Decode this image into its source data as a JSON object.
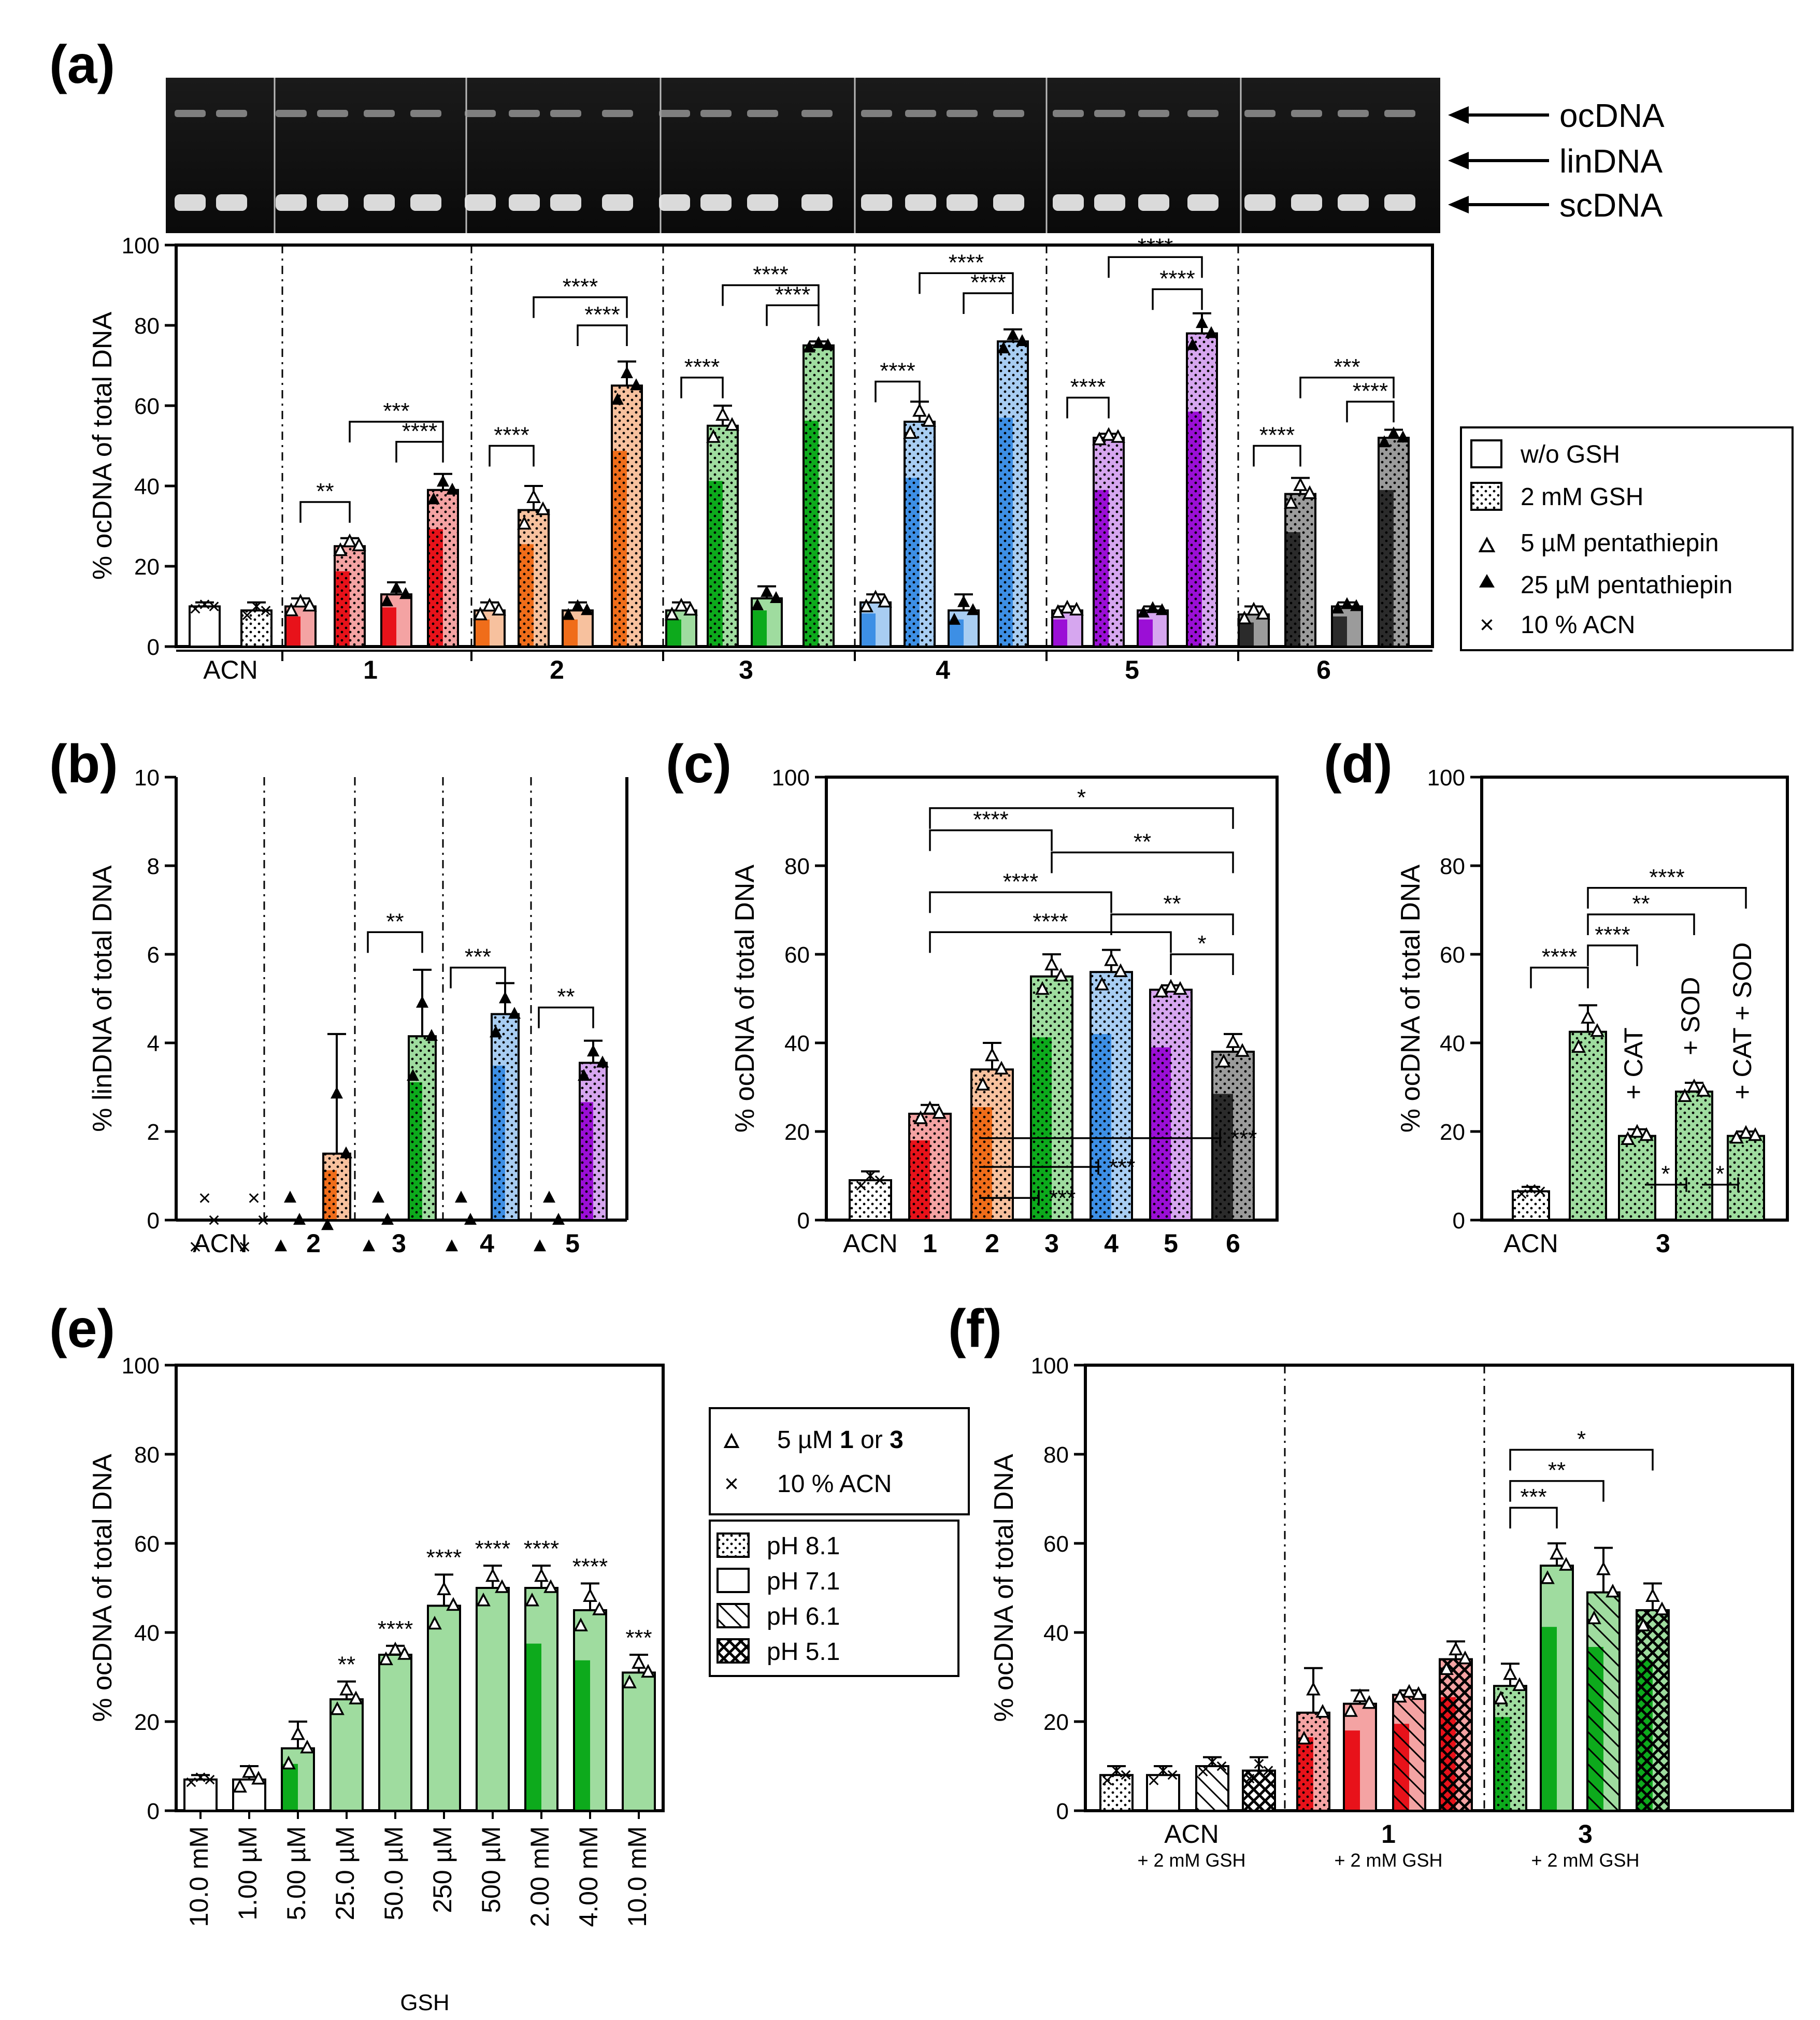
{
  "colors": {
    "1": "#e8121a",
    "1l": "#f4a3a3",
    "2": "#f06d1a",
    "2l": "#f7c19e",
    "3": "#0daa1c",
    "3l": "#9fdc9f",
    "4": "#3d8fe5",
    "4l": "#a8cdf2",
    "5": "#9b0fd6",
    "5l": "#d6a6ef",
    "6": "#2b2b2b",
    "6l": "#9b9b9b",
    "acn": "#ffffff"
  },
  "gel": {
    "labels": [
      "ocDNA",
      "linDNA",
      "scDNA"
    ]
  },
  "legend_a": [
    "w/o  GSH",
    "2 mM GSH",
    "5 µM pentathiepin",
    "25 µM pentathiepin",
    "10 % ACN"
  ],
  "legend_e": {
    "markers": [
      "5 µM 1 or 3",
      "10 % ACN"
    ],
    "markers_main": [
      "5 µM ",
      "10 % ACN"
    ],
    "markers_b1": "1",
    "markers_or": " or ",
    "markers_b3": "3",
    "patterns": [
      "pH 8.1",
      "pH 7.1",
      "pH 6.1",
      "pH 5.1"
    ]
  },
  "chart_data": [
    {
      "panel": "(a)",
      "type": "bar",
      "ylabel": "% ocDNA of total DNA",
      "ylim": [
        0,
        100
      ],
      "yticks": [
        0,
        20,
        40,
        60,
        80,
        100
      ],
      "groups": [
        "ACN",
        "1",
        "2",
        "3",
        "4",
        "5",
        "6"
      ],
      "bars": [
        {
          "group": "ACN",
          "cond": "w/o GSH, 10% ACN",
          "value": 10,
          "color": "acn",
          "pattern": "none",
          "err": 1,
          "marker": "x"
        },
        {
          "group": "ACN",
          "cond": "2 mM GSH, 10% ACN",
          "value": 9,
          "color": "acn",
          "pattern": "dots",
          "err": 2,
          "marker": "x"
        },
        {
          "group": "1",
          "cond": "w/o GSH, 5 µM",
          "value": 10,
          "color": "1",
          "pattern": "none",
          "err": 2,
          "marker": "open"
        },
        {
          "group": "1",
          "cond": "2 mM GSH, 5 µM",
          "value": 25,
          "color": "1",
          "pattern": "dots",
          "err": 2,
          "marker": "open"
        },
        {
          "group": "1",
          "cond": "w/o GSH, 25 µM",
          "value": 13,
          "color": "1",
          "pattern": "none",
          "err": 3,
          "marker": "filled"
        },
        {
          "group": "1",
          "cond": "2 mM GSH, 25 µM",
          "value": 39,
          "color": "1",
          "pattern": "dots",
          "err": 4,
          "marker": "filled"
        },
        {
          "group": "2",
          "cond": "w/o GSH, 5 µM",
          "value": 9,
          "color": "2",
          "pattern": "none",
          "err": 2,
          "marker": "open"
        },
        {
          "group": "2",
          "cond": "2 mM GSH, 5 µM",
          "value": 34,
          "color": "2",
          "pattern": "dots",
          "err": 6,
          "marker": "open"
        },
        {
          "group": "2",
          "cond": "w/o GSH, 25 µM",
          "value": 9,
          "color": "2",
          "pattern": "none",
          "err": 2,
          "marker": "filled"
        },
        {
          "group": "2",
          "cond": "2 mM GSH, 25 µM",
          "value": 65,
          "color": "2",
          "pattern": "dots",
          "err": 6,
          "marker": "filled"
        },
        {
          "group": "3",
          "cond": "w/o GSH, 5 µM",
          "value": 9,
          "color": "3",
          "pattern": "none",
          "err": 2,
          "marker": "open"
        },
        {
          "group": "3",
          "cond": "2 mM GSH, 5 µM",
          "value": 55,
          "color": "3",
          "pattern": "dots",
          "err": 5,
          "marker": "open"
        },
        {
          "group": "3",
          "cond": "w/o GSH, 25 µM",
          "value": 12,
          "color": "3",
          "pattern": "none",
          "err": 3,
          "marker": "filled"
        },
        {
          "group": "3",
          "cond": "2 mM GSH, 25 µM",
          "value": 75,
          "color": "3",
          "pattern": "dots",
          "err": 1,
          "marker": "filled"
        },
        {
          "group": "4",
          "cond": "w/o GSH, 5 µM",
          "value": 11,
          "color": "4",
          "pattern": "none",
          "err": 2,
          "marker": "open"
        },
        {
          "group": "4",
          "cond": "2 mM GSH, 5 µM",
          "value": 56,
          "color": "4",
          "pattern": "dots",
          "err": 5,
          "marker": "open"
        },
        {
          "group": "4",
          "cond": "w/o GSH, 25 µM",
          "value": 9,
          "color": "4",
          "pattern": "none",
          "err": 4,
          "marker": "filled"
        },
        {
          "group": "4",
          "cond": "2 mM GSH, 25 µM",
          "value": 76,
          "color": "4",
          "pattern": "dots",
          "err": 3,
          "marker": "filled"
        },
        {
          "group": "5",
          "cond": "w/o GSH, 5 µM",
          "value": 9,
          "color": "5",
          "pattern": "none",
          "err": 1,
          "marker": "open"
        },
        {
          "group": "5",
          "cond": "2 mM GSH, 5 µM",
          "value": 52,
          "color": "5",
          "pattern": "dots",
          "err": 1,
          "marker": "open"
        },
        {
          "group": "5",
          "cond": "w/o GSH, 25 µM",
          "value": 9,
          "color": "5",
          "pattern": "none",
          "err": 1,
          "marker": "filled"
        },
        {
          "group": "5",
          "cond": "2 mM GSH, 25 µM",
          "value": 78,
          "color": "5",
          "pattern": "dots",
          "err": 5,
          "marker": "filled"
        },
        {
          "group": "6",
          "cond": "w/o GSH, 5 µM",
          "value": 8,
          "color": "6",
          "pattern": "none",
          "err": 2,
          "marker": "open"
        },
        {
          "group": "6",
          "cond": "2 mM GSH, 5 µM",
          "value": 38,
          "color": "6",
          "pattern": "dots",
          "err": 4,
          "marker": "open"
        },
        {
          "group": "6",
          "cond": "w/o GSH, 25 µM",
          "value": 10,
          "color": "6",
          "pattern": "none",
          "err": 1,
          "marker": "filled"
        },
        {
          "group": "6",
          "cond": "2 mM GSH, 25 µM",
          "value": 52,
          "color": "6",
          "pattern": "dots",
          "err": 2,
          "marker": "filled"
        }
      ],
      "significance": [
        {
          "from": 2,
          "to": 3,
          "y": 36,
          "label": "**"
        },
        {
          "from": 3,
          "to": 5,
          "y": 56,
          "label": "***"
        },
        {
          "from": 4,
          "to": 5,
          "y": 51,
          "label": "****"
        },
        {
          "from": 6,
          "to": 7,
          "y": 50,
          "label": "****"
        },
        {
          "from": 7,
          "to": 9,
          "y": 87,
          "label": "****"
        },
        {
          "from": 8,
          "to": 9,
          "y": 80,
          "label": "****"
        },
        {
          "from": 10,
          "to": 11,
          "y": 67,
          "label": "****"
        },
        {
          "from": 11,
          "to": 13,
          "y": 90,
          "label": "****"
        },
        {
          "from": 12,
          "to": 13,
          "y": 85,
          "label": "****"
        },
        {
          "from": 14,
          "to": 15,
          "y": 66,
          "label": "****"
        },
        {
          "from": 15,
          "to": 17,
          "y": 93,
          "label": "****"
        },
        {
          "from": 16,
          "to": 17,
          "y": 88,
          "label": "****"
        },
        {
          "from": 18,
          "to": 19,
          "y": 62,
          "label": "****"
        },
        {
          "from": 19,
          "to": 21,
          "y": 97,
          "label": "****"
        },
        {
          "from": 20,
          "to": 21,
          "y": 89,
          "label": "****"
        },
        {
          "from": 22,
          "to": 23,
          "y": 50,
          "label": "****"
        },
        {
          "from": 23,
          "to": 25,
          "y": 67,
          "label": "***"
        },
        {
          "from": 24,
          "to": 25,
          "y": 61,
          "label": "****"
        }
      ]
    },
    {
      "panel": "(b)",
      "type": "bar",
      "ylabel": "% linDNA of total  DNA",
      "ylim": [
        0,
        10
      ],
      "yticks": [
        0,
        2,
        4,
        6,
        8,
        10
      ],
      "groups": [
        "ACN",
        "2",
        "3",
        "4",
        "5"
      ],
      "bars": [
        {
          "group": "ACN",
          "value": 0,
          "color": "acn",
          "pattern": "none",
          "err": 0,
          "marker": "x"
        },
        {
          "group": "ACN",
          "value": 0,
          "color": "acn",
          "pattern": "dots",
          "err": 0,
          "marker": "x"
        },
        {
          "group": "2",
          "value": 0,
          "color": "2",
          "pattern": "none",
          "err": 0,
          "marker": "filled"
        },
        {
          "group": "2",
          "value": 1.5,
          "color": "2",
          "pattern": "dots",
          "err": 2.7,
          "marker": "filled"
        },
        {
          "group": "3",
          "value": 0,
          "color": "3",
          "pattern": "none",
          "err": 0,
          "marker": "filled"
        },
        {
          "group": "3",
          "value": 4.15,
          "color": "3",
          "pattern": "dots",
          "err": 1.5,
          "marker": "filled"
        },
        {
          "group": "4",
          "value": 0,
          "color": "4",
          "pattern": "none",
          "err": 0,
          "marker": "filled"
        },
        {
          "group": "4",
          "value": 4.65,
          "color": "4",
          "pattern": "dots",
          "err": 0.7,
          "marker": "filled"
        },
        {
          "group": "5",
          "value": 0,
          "color": "5",
          "pattern": "none",
          "err": 0,
          "marker": "filled"
        },
        {
          "group": "5",
          "value": 3.55,
          "color": "5",
          "pattern": "dots",
          "err": 0.5,
          "marker": "filled"
        }
      ],
      "significance": [
        {
          "from": 4,
          "to": 5,
          "y": 6.5,
          "label": "**"
        },
        {
          "from": 6,
          "to": 7,
          "y": 5.7,
          "label": "***"
        },
        {
          "from": 8,
          "to": 9,
          "y": 4.8,
          "label": "**"
        }
      ]
    },
    {
      "panel": "(c)",
      "type": "bar",
      "ylabel": "% ocDNA of total DNA",
      "ylim": [
        0,
        100
      ],
      "yticks": [
        0,
        20,
        40,
        60,
        80,
        100
      ],
      "categories": [
        "ACN",
        "1",
        "2",
        "3",
        "4",
        "5",
        "6"
      ],
      "bars": [
        {
          "group": "ACN",
          "value": 9,
          "color": "acn",
          "pattern": "dots",
          "err": 2,
          "marker": "x"
        },
        {
          "group": "1",
          "value": 24,
          "color": "1",
          "pattern": "dots",
          "err": 2,
          "marker": "open"
        },
        {
          "group": "2",
          "value": 34,
          "color": "2",
          "pattern": "dots",
          "err": 6,
          "marker": "open"
        },
        {
          "group": "3",
          "value": 55,
          "color": "3",
          "pattern": "dots",
          "err": 5,
          "marker": "open"
        },
        {
          "group": "4",
          "value": 56,
          "color": "4",
          "pattern": "dots",
          "err": 5,
          "marker": "open"
        },
        {
          "group": "5",
          "value": 52,
          "color": "5",
          "pattern": "dots",
          "err": 1,
          "marker": "open"
        },
        {
          "group": "6",
          "value": 38,
          "color": "6",
          "pattern": "dots",
          "err": 4,
          "marker": "open"
        }
      ],
      "significance": [
        {
          "from": 1,
          "to": 6,
          "y": 93,
          "label": "*"
        },
        {
          "from": 1,
          "to": 3,
          "y": 88,
          "label": "****"
        },
        {
          "from": 3,
          "to": 6,
          "y": 83,
          "label": "**"
        },
        {
          "from": 1,
          "to": 4,
          "y": 74,
          "label": "****"
        },
        {
          "from": 4,
          "to": 6,
          "y": 69,
          "label": "**"
        },
        {
          "from": 1,
          "to": 5,
          "y": 65,
          "label": "****"
        },
        {
          "from": 5,
          "to": 6,
          "y": 60,
          "label": "*"
        },
        {
          "from": 2,
          "to": 6,
          "y": 18.5,
          "label": "***",
          "style": "horizontal"
        },
        {
          "from": 2,
          "to": 4,
          "y": 12,
          "label": "***",
          "style": "horizontal"
        },
        {
          "from": 2,
          "to": 3,
          "y": 5,
          "label": "***",
          "style": "horizontal"
        }
      ]
    },
    {
      "panel": "(d)",
      "type": "bar",
      "ylabel": "% ocDNA of total DNA",
      "ylim": [
        0,
        100
      ],
      "yticks": [
        0,
        20,
        40,
        60,
        80,
        100
      ],
      "groups": [
        "ACN",
        "3"
      ],
      "bars": [
        {
          "label": "",
          "value": 6.5,
          "color": "acn",
          "pattern": "dots",
          "err": 1,
          "marker": "x"
        },
        {
          "label": "",
          "value": 42.5,
          "color": "3l",
          "pattern": "dots",
          "err": 6,
          "marker": "open"
        },
        {
          "label": "+ CAT",
          "value": 19,
          "color": "3l",
          "pattern": "dots",
          "err": 1.5,
          "marker": "open"
        },
        {
          "label": "+ SOD",
          "value": 29,
          "color": "3l",
          "pattern": "dots",
          "err": 2,
          "marker": "open"
        },
        {
          "label": "+ CAT + SOD",
          "value": 19,
          "color": "3l",
          "pattern": "dots",
          "err": 1,
          "marker": "open"
        }
      ],
      "significance": [
        {
          "from": 0,
          "to": 1,
          "y": 57,
          "label": "****"
        },
        {
          "from": 1,
          "to": 2,
          "y": 62,
          "label": "****"
        },
        {
          "from": 1,
          "to": 3,
          "y": 69,
          "label": "**"
        },
        {
          "from": 1,
          "to": 4,
          "y": 75,
          "label": "****"
        },
        {
          "from": 2,
          "to": 3,
          "y": 8,
          "label": "*",
          "style": "horizontal"
        },
        {
          "from": 3,
          "to": 4,
          "y": 8,
          "label": "*",
          "style": "horizontal"
        }
      ]
    },
    {
      "panel": "(e)",
      "type": "bar",
      "ylabel": "% ocDNA of total DNA",
      "ylim": [
        0,
        100
      ],
      "yticks": [
        0,
        20,
        40,
        60,
        80,
        100
      ],
      "xlabel": "GSH",
      "categories": [
        "10.0 mM",
        "1.00 µM",
        "5.00 µM",
        "25.0 µM",
        "50.0 µM",
        "250 µM",
        "500 µM",
        "2.00 mM",
        "4.00 mM",
        "10.0 mM"
      ],
      "values": [
        7,
        7,
        14,
        25,
        35,
        46,
        50,
        50,
        45,
        31
      ],
      "errors": [
        1,
        3,
        6,
        4,
        2,
        7,
        5,
        5,
        6,
        4
      ],
      "markers": [
        "x",
        "open",
        "open",
        "open",
        "open",
        "open",
        "open",
        "open",
        "open",
        "open"
      ],
      "colors": [
        "acn",
        "acn",
        "3",
        "3l",
        "3l",
        "3l",
        "3l",
        "3",
        "3",
        "3l"
      ],
      "significance": [
        "",
        "",
        "",
        "**",
        "****",
        "****",
        "****",
        "****",
        "****",
        "***"
      ]
    },
    {
      "panel": "(f)",
      "type": "bar",
      "ylabel": "% ocDNA of total DNA",
      "ylim": [
        0,
        100
      ],
      "yticks": [
        0,
        20,
        40,
        60,
        80,
        100
      ],
      "groups": [
        "ACN",
        "1",
        "3"
      ],
      "group_sub": "+ 2 mM GSH",
      "group_sub_1": "+ 2 mM  GSH",
      "bars": [
        {
          "group": "ACN",
          "ph": "8.1",
          "value": 8,
          "color": "acn",
          "pattern": "dots",
          "err": 2,
          "marker": "x"
        },
        {
          "group": "ACN",
          "ph": "7.1",
          "value": 8,
          "color": "acn",
          "pattern": "none",
          "err": 2,
          "marker": "x"
        },
        {
          "group": "ACN",
          "ph": "6.1",
          "value": 10,
          "color": "acn",
          "pattern": "hatch",
          "err": 2,
          "marker": "x"
        },
        {
          "group": "ACN",
          "ph": "5.1",
          "value": 9,
          "color": "acn",
          "pattern": "cross",
          "err": 3,
          "marker": "x"
        },
        {
          "group": "1",
          "ph": "8.1",
          "value": 22,
          "color": "1",
          "pattern": "dots",
          "err": 10,
          "marker": "open"
        },
        {
          "group": "1",
          "ph": "7.1",
          "value": 24,
          "color": "1",
          "pattern": "none",
          "err": 3,
          "marker": "open"
        },
        {
          "group": "1",
          "ph": "6.1",
          "value": 26,
          "color": "1",
          "pattern": "hatch",
          "err": 1,
          "marker": "open"
        },
        {
          "group": "1",
          "ph": "5.1",
          "value": 34,
          "color": "1",
          "pattern": "cross",
          "err": 4,
          "marker": "open"
        },
        {
          "group": "3",
          "ph": "8.1",
          "value": 28,
          "color": "3",
          "pattern": "dots",
          "err": 5,
          "marker": "open"
        },
        {
          "group": "3",
          "ph": "7.1",
          "value": 55,
          "color": "3",
          "pattern": "none",
          "err": 5,
          "marker": "open"
        },
        {
          "group": "3",
          "ph": "6.1",
          "value": 49,
          "color": "3",
          "pattern": "hatch",
          "err": 10,
          "marker": "open"
        },
        {
          "group": "3",
          "ph": "5.1",
          "value": 45,
          "color": "3",
          "pattern": "cross",
          "err": 6,
          "marker": "open"
        }
      ],
      "significance": [
        {
          "from": 8,
          "to": 9,
          "y": 68,
          "label": "***"
        },
        {
          "from": 8,
          "to": 10,
          "y": 74,
          "label": "**"
        },
        {
          "from": 8,
          "to": 11,
          "y": 81,
          "label": "*"
        }
      ]
    }
  ]
}
